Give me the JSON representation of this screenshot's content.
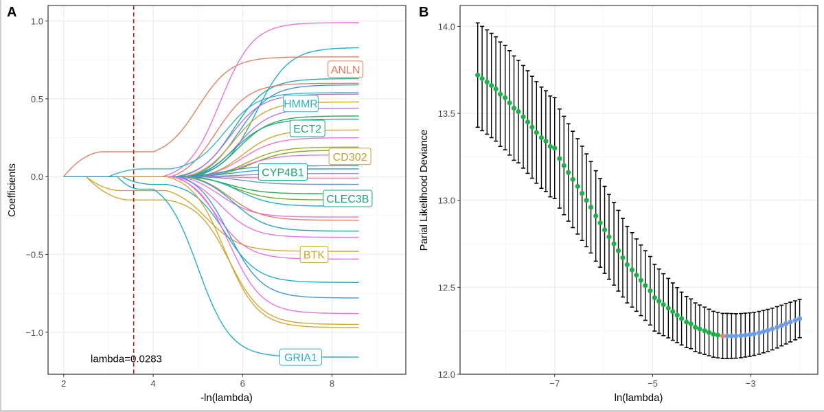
{
  "figure": {
    "panels": [
      "A",
      "B"
    ]
  },
  "chart_data": [
    {
      "panel": "A",
      "type": "line",
      "title": "",
      "xlabel": "-ln(lambda)",
      "ylabel": "Coefficients",
      "xlim": [
        1.65,
        9.65
      ],
      "ylim": [
        -1.27,
        1.1
      ],
      "xticks": [
        2,
        4,
        6,
        8
      ],
      "xtick_labels": [
        "2",
        "4",
        "6",
        "8"
      ],
      "yticks": [
        1.0,
        0.5,
        0.0,
        -0.5,
        -1.0
      ],
      "ytick_labels": [
        "1.0",
        "0.5",
        "0.0",
        "−0.5",
        "−1.0"
      ],
      "grid": true,
      "x_end": 8.6,
      "vline": {
        "x": 3.565,
        "color": "#a51d1d",
        "style": "dashed"
      },
      "annotation": {
        "text": "lambda=0.0283",
        "x": 3.4,
        "y": -1.17
      },
      "series_note": "Each coefficient path: zero until 'start', then (optional plateau 'early' value) sigmoid toward 'final' centered at 'mid'",
      "series": [
        {
          "name": "path-01",
          "color": "#e86bdc",
          "start": 4.2,
          "mid": 5.5,
          "final": 0.99
        },
        {
          "name": "path-02",
          "color": "#17a9c9",
          "start": 4.6,
          "mid": 6.3,
          "final": 0.83
        },
        {
          "name": "ANLN",
          "color": "#dc7b5e",
          "start": 2.0,
          "early": 0.16,
          "early_end": 2.9,
          "plateau_end": 4.0,
          "mid": 5.0,
          "final": 0.77
        },
        {
          "name": "path-04",
          "color": "#1aa6a0",
          "start": 4.5,
          "mid": 5.8,
          "final": 0.63
        },
        {
          "name": "path-05",
          "color": "#dc7b5e",
          "start": 4.4,
          "mid": 5.4,
          "final": 0.6
        },
        {
          "name": "path-06",
          "color": "#3a8fd6",
          "start": 4.8,
          "mid": 5.9,
          "final": 0.59
        },
        {
          "name": "HMMR",
          "color": "#2fb0c4",
          "start": 3.0,
          "early": 0.05,
          "early_end": 3.8,
          "plateau_end": 4.4,
          "mid": 5.6,
          "final": 0.54
        },
        {
          "name": "path-08",
          "color": "#b46fe0",
          "start": 4.6,
          "mid": 5.7,
          "final": 0.53
        },
        {
          "name": "path-09",
          "color": "#cfa12a",
          "start": 4.7,
          "mid": 5.8,
          "final": 0.48
        },
        {
          "name": "path-10",
          "color": "#b46fe0",
          "start": 4.8,
          "mid": 5.9,
          "final": 0.44
        },
        {
          "name": "path-11",
          "color": "#1ea653",
          "start": 4.9,
          "mid": 5.9,
          "final": 0.39
        },
        {
          "name": "ECT2",
          "color": "#1aa67a",
          "start": 4.8,
          "mid": 5.8,
          "final": 0.37
        },
        {
          "name": "path-13",
          "color": "#cfa12a",
          "start": 5.0,
          "mid": 6.0,
          "final": 0.3
        },
        {
          "name": "path-14",
          "color": "#e86bdc",
          "start": 4.9,
          "mid": 6.0,
          "final": 0.25
        },
        {
          "name": "CD302",
          "color": "#9aa61e",
          "start": 5.0,
          "mid": 6.1,
          "final": 0.19
        },
        {
          "name": "path-16",
          "color": "#6fa51a",
          "start": 5.0,
          "mid": 6.2,
          "final": 0.17
        },
        {
          "name": "path-17",
          "color": "#e86bdc",
          "start": 4.9,
          "mid": 6.0,
          "final": 0.14
        },
        {
          "name": "CYP4B1",
          "color": "#1aa6a0",
          "start": 4.6,
          "mid": 5.6,
          "final": 0.07
        },
        {
          "name": "path-19",
          "color": "#17a9c9",
          "start": 4.7,
          "mid": 5.8,
          "final": 0.05
        },
        {
          "name": "path-20",
          "color": "#8a7fd8",
          "start": 4.8,
          "mid": 6.0,
          "final": 0.02
        },
        {
          "name": "path-21",
          "color": "#e8779a",
          "start": 4.8,
          "mid": 6.0,
          "final": -0.01
        },
        {
          "name": "path-22",
          "color": "#5f8fd0",
          "start": 4.9,
          "mid": 6.0,
          "final": -0.05
        },
        {
          "name": "CLEC3B",
          "color": "#1ea653",
          "start": 4.7,
          "mid": 5.7,
          "final": -0.11
        },
        {
          "name": "path-24",
          "color": "#6fa51a",
          "start": 4.8,
          "mid": 5.8,
          "final": -0.15
        },
        {
          "name": "path-25",
          "color": "#17a9c9",
          "start": 4.9,
          "mid": 5.9,
          "final": -0.19
        },
        {
          "name": "path-26",
          "color": "#e86bdc",
          "start": 4.6,
          "mid": 5.5,
          "final": -0.26
        },
        {
          "name": "path-27",
          "color": "#dc7b5e",
          "start": 4.8,
          "mid": 5.7,
          "final": -0.28
        },
        {
          "name": "path-28",
          "color": "#1aa6a0",
          "start": 4.7,
          "mid": 5.8,
          "final": -0.35
        },
        {
          "name": "path-29",
          "color": "#e86bdc",
          "start": 4.5,
          "mid": 5.5,
          "final": -0.39
        },
        {
          "name": "BTK",
          "color": "#cfa12a",
          "start": 2.5,
          "early": -0.09,
          "early_end": 3.3,
          "plateau_end": 4.3,
          "mid": 5.2,
          "final": -0.48
        },
        {
          "name": "path-31",
          "color": "#e86bdc",
          "start": 4.5,
          "mid": 5.4,
          "final": -0.53
        },
        {
          "name": "path-32",
          "color": "#17a9c9",
          "start": 3.3,
          "early": -0.05,
          "early_end": 4.0,
          "plateau_end": 4.3,
          "mid": 5.6,
          "final": -0.68
        },
        {
          "name": "path-33",
          "color": "#3a8fd6",
          "start": 4.6,
          "mid": 5.7,
          "final": -0.78
        },
        {
          "name": "path-34",
          "color": "#e86bdc",
          "start": 4.4,
          "mid": 5.7,
          "final": -0.88
        },
        {
          "name": "path-35",
          "color": "#cfa12a",
          "start": 2.5,
          "early": -0.15,
          "early_end": 3.5,
          "plateau_end": 4.3,
          "mid": 5.7,
          "final": -0.95
        },
        {
          "name": "path-36",
          "color": "#cfa12a",
          "start": 4.3,
          "mid": 5.6,
          "final": -0.97
        },
        {
          "name": "GRIA1",
          "color": "#17a9c9",
          "start": 3.2,
          "early": -0.08,
          "early_end": 3.7,
          "plateau_end": 4.0,
          "mid": 5.0,
          "final": -1.16
        }
      ],
      "labels": [
        {
          "text": "ANLN",
          "color": "#dc7b5e",
          "x": 8.3,
          "y": 0.69
        },
        {
          "text": "HMMR",
          "color": "#2fb0c4",
          "x": 7.3,
          "y": 0.47
        },
        {
          "text": "ECT2",
          "color": "#1aa67a",
          "x": 7.45,
          "y": 0.31
        },
        {
          "text": "CD302",
          "color": "#c0a228",
          "x": 8.4,
          "y": 0.13
        },
        {
          "text": "CYP4B1",
          "color": "#1aa67a",
          "x": 6.9,
          "y": 0.03
        },
        {
          "text": "CLEC3B",
          "color": "#1aa67a",
          "x": 8.35,
          "y": -0.14
        },
        {
          "text": "BTK",
          "color": "#cfa12a",
          "x": 7.6,
          "y": -0.5
        },
        {
          "text": "GRIA1",
          "color": "#2fb0c4",
          "x": 7.3,
          "y": -1.16
        }
      ]
    },
    {
      "panel": "B",
      "type": "scatter",
      "title": "",
      "xlabel": "ln(lambda)",
      "ylabel": "Parial Likelihood Deviance",
      "xlim": [
        -8.93,
        -1.63
      ],
      "ylim": [
        12.0,
        14.12
      ],
      "xticks": [
        -7,
        -5,
        -3
      ],
      "xtick_labels": [
        "−7",
        "−5",
        "−3"
      ],
      "yticks": [
        14.0,
        13.5,
        13.0,
        12.5,
        12.0
      ],
      "ytick_labels": [
        "14.0",
        "13.5",
        "13.0",
        "12.5",
        "12.0"
      ],
      "grid": true,
      "colors": {
        "left": "#1db14b",
        "min": "#f08070",
        "right": "#6f9ce8",
        "errorbar": "#000000"
      },
      "min_index": 54,
      "x": [
        -8.57,
        -8.48,
        -8.38,
        -8.29,
        -8.2,
        -8.11,
        -8.01,
        -7.92,
        -7.83,
        -7.74,
        -7.64,
        -7.55,
        -7.46,
        -7.37,
        -7.27,
        -7.18,
        -7.09,
        -7.0,
        -6.9,
        -6.81,
        -6.72,
        -6.63,
        -6.53,
        -6.44,
        -6.35,
        -6.26,
        -6.16,
        -6.07,
        -5.98,
        -5.89,
        -5.79,
        -5.7,
        -5.61,
        -5.52,
        -5.42,
        -5.33,
        -5.24,
        -5.15,
        -5.05,
        -4.96,
        -4.87,
        -4.78,
        -4.68,
        -4.59,
        -4.5,
        -4.41,
        -4.31,
        -4.22,
        -4.13,
        -4.04,
        -3.94,
        -3.85,
        -3.76,
        -3.67,
        -3.57,
        -3.48,
        -3.39,
        -3.3,
        -3.2,
        -3.11,
        -3.02,
        -2.93,
        -2.83,
        -2.74,
        -2.65,
        -2.56,
        -2.46,
        -2.37,
        -2.28,
        -2.19,
        -2.09,
        -2.0
      ],
      "mean": [
        13.72,
        13.7,
        13.68,
        13.66,
        13.64,
        13.61,
        13.59,
        13.56,
        13.53,
        13.51,
        13.48,
        13.45,
        13.42,
        13.39,
        13.36,
        13.34,
        13.31,
        13.3,
        13.24,
        13.2,
        13.16,
        13.12,
        13.08,
        13.04,
        13.0,
        12.96,
        12.91,
        12.87,
        12.83,
        12.79,
        12.75,
        12.71,
        12.67,
        12.63,
        12.6,
        12.57,
        12.54,
        12.51,
        12.48,
        12.44,
        12.42,
        12.4,
        12.38,
        12.36,
        12.34,
        12.32,
        12.3,
        12.29,
        12.27,
        12.26,
        12.25,
        12.24,
        12.23,
        12.225,
        12.22,
        12.22,
        12.22,
        12.22,
        12.222,
        12.225,
        12.228,
        12.232,
        12.238,
        12.245,
        12.252,
        12.26,
        12.27,
        12.28,
        12.29,
        12.3,
        12.31,
        12.32
      ],
      "se": [
        0.3,
        0.3,
        0.3,
        0.3,
        0.3,
        0.3,
        0.3,
        0.3,
        0.3,
        0.295,
        0.295,
        0.295,
        0.293,
        0.292,
        0.291,
        0.29,
        0.29,
        0.29,
        0.285,
        0.283,
        0.28,
        0.277,
        0.274,
        0.271,
        0.267,
        0.263,
        0.26,
        0.255,
        0.25,
        0.244,
        0.238,
        0.232,
        0.226,
        0.22,
        0.214,
        0.208,
        0.203,
        0.2,
        0.197,
        0.192,
        0.185,
        0.178,
        0.171,
        0.165,
        0.158,
        0.152,
        0.147,
        0.143,
        0.14,
        0.138,
        0.136,
        0.134,
        0.132,
        0.131,
        0.13,
        0.13,
        0.129,
        0.128,
        0.127,
        0.126,
        0.125,
        0.124,
        0.123,
        0.122,
        0.121,
        0.12,
        0.119,
        0.117,
        0.116,
        0.114,
        0.112,
        0.11
      ]
    }
  ]
}
